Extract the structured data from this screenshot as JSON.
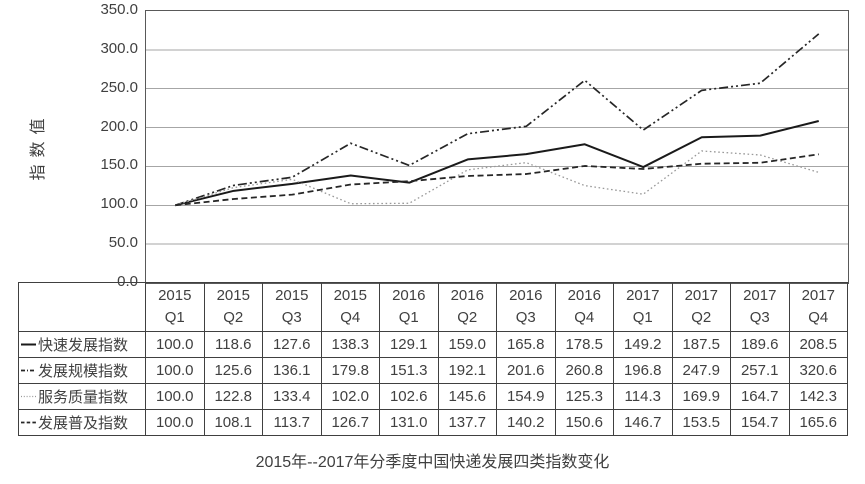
{
  "chart_title": "2015年--2017年分季度中国快递发展四类指数变化",
  "y_axis": {
    "title": "指数值",
    "ticks": [
      "350.0",
      "300.0",
      "250.0",
      "200.0",
      "150.0",
      "100.0",
      "50.0",
      "0.0"
    ]
  },
  "chart_data": {
    "type": "line",
    "title": "2015年--2017年分季度中国快递发展四类指数变化",
    "ylabel": "指数值",
    "ylim": [
      0,
      350
    ],
    "ytick_step": 50,
    "grid": true,
    "legend_position": "table-row-labels",
    "categories": [
      {
        "year": "2015",
        "quarter": "Q1"
      },
      {
        "year": "2015",
        "quarter": "Q2"
      },
      {
        "year": "2015",
        "quarter": "Q3"
      },
      {
        "year": "2015",
        "quarter": "Q4"
      },
      {
        "year": "2016",
        "quarter": "Q1"
      },
      {
        "year": "2016",
        "quarter": "Q2"
      },
      {
        "year": "2016",
        "quarter": "Q3"
      },
      {
        "year": "2016",
        "quarter": "Q4"
      },
      {
        "year": "2017",
        "quarter": "Q1"
      },
      {
        "year": "2017",
        "quarter": "Q2"
      },
      {
        "year": "2017",
        "quarter": "Q3"
      },
      {
        "year": "2017",
        "quarter": "Q4"
      }
    ],
    "series": [
      {
        "name": "快速发展指数",
        "line_style": "solid",
        "marker_icon": "solid-line-icon",
        "color": "#1a1a1a",
        "values": [
          "100.0",
          "118.6",
          "127.6",
          "138.3",
          "129.1",
          "159.0",
          "165.8",
          "178.5",
          "149.2",
          "187.5",
          "189.6",
          "208.5"
        ]
      },
      {
        "name": "发展规模指数",
        "line_style": "dashdotdot",
        "marker_icon": "dash-dot-line-icon",
        "color": "#262626",
        "values": [
          "100.0",
          "125.6",
          "136.1",
          "179.8",
          "151.3",
          "192.1",
          "201.6",
          "260.8",
          "196.8",
          "247.9",
          "257.1",
          "320.6"
        ]
      },
      {
        "name": "服务质量指数",
        "line_style": "dotted",
        "marker_icon": "dotted-line-icon",
        "color": "#999999",
        "values": [
          "100.0",
          "122.8",
          "133.4",
          "102.0",
          "102.6",
          "145.6",
          "154.9",
          "125.3",
          "114.3",
          "169.9",
          "164.7",
          "142.3"
        ]
      },
      {
        "name": "发展普及指数",
        "line_style": "dashed",
        "marker_icon": "dashed-line-icon",
        "color": "#262626",
        "values": [
          "100.0",
          "108.1",
          "113.7",
          "126.7",
          "131.0",
          "137.7",
          "140.2",
          "150.6",
          "146.7",
          "153.5",
          "154.7",
          "165.6"
        ]
      }
    ]
  },
  "colors": {
    "grid": "#a6a6a6",
    "axis_border": "#595959",
    "table_border": "#404040",
    "text": "#404040",
    "background": "#ffffff"
  }
}
